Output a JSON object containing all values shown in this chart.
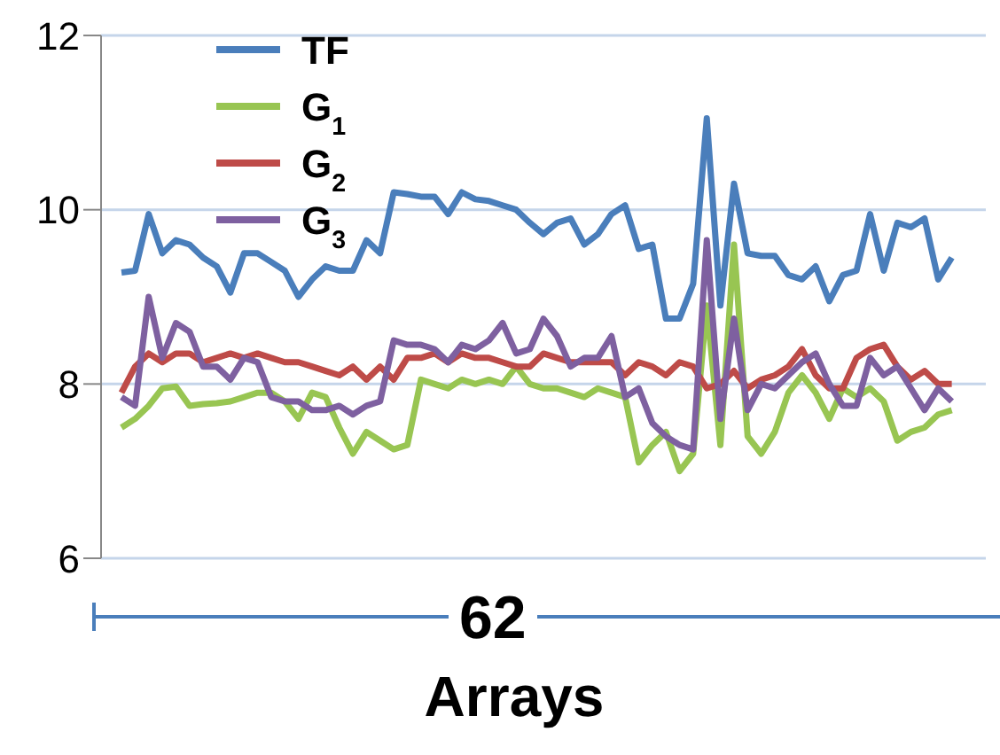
{
  "chart_data": {
    "type": "line",
    "xlabel": "Arrays",
    "annotations": [
      "62"
    ],
    "categories": [
      null,
      null,
      null,
      null,
      null,
      null,
      null,
      null,
      null,
      null,
      null,
      null,
      null,
      null,
      null,
      null,
      null,
      null,
      null,
      null,
      null,
      null,
      null,
      null,
      null,
      null,
      null,
      null,
      null,
      null,
      null,
      null,
      null,
      null,
      null,
      null,
      null,
      null,
      null,
      null,
      null,
      null,
      null,
      null,
      null,
      null,
      null,
      null,
      null,
      null,
      null,
      null,
      null,
      null,
      null,
      null,
      null,
      null,
      null,
      null,
      null,
      null
    ],
    "series": [
      {
        "name": "TF",
        "color": "#4a7ebb",
        "values": [
          9.28,
          9.3,
          9.95,
          9.5,
          9.65,
          9.6,
          9.45,
          9.35,
          9.05,
          9.5,
          9.5,
          9.4,
          9.3,
          9.0,
          9.2,
          9.35,
          9.3,
          9.3,
          9.65,
          9.5,
          10.2,
          10.18,
          10.15,
          10.15,
          9.95,
          10.2,
          10.12,
          10.1,
          10.05,
          10.0,
          9.85,
          9.72,
          9.85,
          9.9,
          9.6,
          9.72,
          9.95,
          10.05,
          9.55,
          9.6,
          8.75,
          8.75,
          9.15,
          11.05,
          8.9,
          10.3,
          9.5,
          9.47,
          9.47,
          9.25,
          9.2,
          9.35,
          8.95,
          9.25,
          9.3,
          9.95,
          9.3,
          9.85,
          9.8,
          9.9,
          9.2,
          9.45
        ]
      },
      {
        "name": "G$_{1}$",
        "color": "#98c552",
        "values": [
          7.5,
          7.6,
          7.75,
          7.95,
          7.97,
          7.75,
          7.77,
          7.78,
          7.8,
          7.85,
          7.9,
          7.9,
          7.8,
          7.6,
          7.9,
          7.85,
          7.5,
          7.2,
          7.45,
          7.35,
          7.25,
          7.3,
          8.05,
          8.0,
          7.95,
          8.05,
          8.0,
          8.05,
          8.0,
          8.2,
          8.0,
          7.95,
          7.95,
          7.9,
          7.85,
          7.95,
          7.9,
          7.85,
          7.1,
          7.3,
          7.45,
          7.0,
          7.2,
          8.9,
          7.3,
          9.6,
          7.4,
          7.2,
          7.45,
          7.9,
          8.1,
          7.9,
          7.6,
          7.95,
          7.85,
          7.95,
          7.8,
          7.35,
          7.45,
          7.5,
          7.65,
          7.7
        ]
      },
      {
        "name": "G$_{2}$",
        "color": "#be4b48",
        "values": [
          7.9,
          8.2,
          8.35,
          8.25,
          8.35,
          8.35,
          8.25,
          8.3,
          8.35,
          8.3,
          8.35,
          8.3,
          8.25,
          8.25,
          8.2,
          8.15,
          8.1,
          8.2,
          8.05,
          8.2,
          8.05,
          8.3,
          8.3,
          8.35,
          8.25,
          8.35,
          8.3,
          8.3,
          8.25,
          8.2,
          8.2,
          8.35,
          8.3,
          8.25,
          8.25,
          8.25,
          8.25,
          8.1,
          8.25,
          8.2,
          8.1,
          8.25,
          8.2,
          7.95,
          8.0,
          8.15,
          7.95,
          8.05,
          8.1,
          8.2,
          8.4,
          8.1,
          7.95,
          7.95,
          8.3,
          8.4,
          8.45,
          8.2,
          8.05,
          8.15,
          8.0,
          8.0
        ]
      },
      {
        "name": "G$_{3}$",
        "color": "#7e60a0",
        "values": [
          7.85,
          7.75,
          9.0,
          8.3,
          8.7,
          8.6,
          8.2,
          8.2,
          8.05,
          8.3,
          8.25,
          7.85,
          7.8,
          7.8,
          7.7,
          7.7,
          7.75,
          7.65,
          7.75,
          7.8,
          8.5,
          8.45,
          8.45,
          8.4,
          8.25,
          8.45,
          8.4,
          8.5,
          8.7,
          8.35,
          8.4,
          8.75,
          8.55,
          8.2,
          8.3,
          8.3,
          8.55,
          7.85,
          7.95,
          7.55,
          7.4,
          7.3,
          7.25,
          9.65,
          7.6,
          8.75,
          7.7,
          8.0,
          7.95,
          8.1,
          8.25,
          8.35,
          8.0,
          7.75,
          7.75,
          8.3,
          8.1,
          8.2,
          7.95,
          7.7,
          7.95,
          7.8
        ]
      }
    ],
    "ylim": [
      6,
      12
    ],
    "yticks": [
      6,
      8,
      10,
      12
    ],
    "grid": "y",
    "legend": "top left"
  }
}
